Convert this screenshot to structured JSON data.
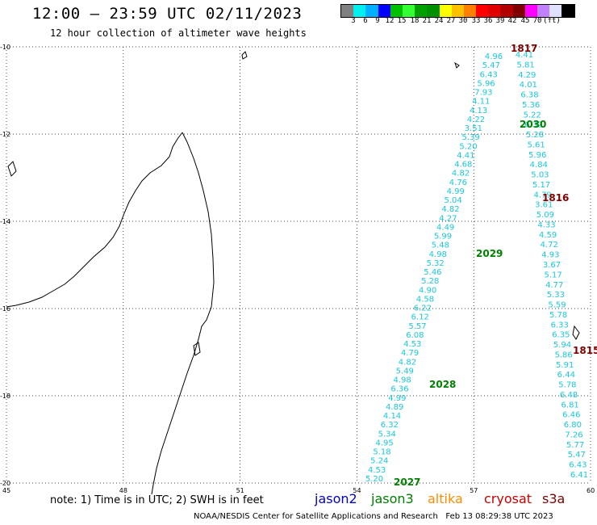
{
  "header": {
    "title": "12:00 – 23:59 UTC 02/11/2023",
    "subtitle": "12 hour collection of altimeter wave heights"
  },
  "colorbar": {
    "colors": [
      "#808080",
      "#00f0f0",
      "#00b0ff",
      "#0000ff",
      "#00c000",
      "#33ff33",
      "#00a000",
      "#009000",
      "#ffff00",
      "#ffc000",
      "#ff8000",
      "#ff0000",
      "#e00000",
      "#b00000",
      "#800000",
      "#ff00ff",
      "#c080ff",
      "#e0e0ff",
      "#000000"
    ],
    "labels": [
      "3",
      "6",
      "9",
      "12",
      "15",
      "18",
      "21",
      "24",
      "27",
      "30",
      "33",
      "36",
      "39",
      "42",
      "45",
      "70",
      "(ft)"
    ]
  },
  "axes": {
    "lat_labels": [
      "-10",
      "-12",
      "-14",
      "-16",
      "-18",
      "-20"
    ],
    "lon_labels": [
      "45",
      "48",
      "51",
      "54",
      "57",
      "60"
    ],
    "lat_range": [
      -20,
      -10
    ],
    "lon_range": [
      45,
      60
    ]
  },
  "tracks": [
    {
      "id": "1817",
      "color": "#800000",
      "lat_top": -10.0,
      "lon_top": 58.1,
      "lat_bot": -10.0,
      "lon_bot": 58.1
    },
    {
      "id": "2030",
      "color": "#008000"
    },
    {
      "id": "1816",
      "color": "#800000"
    },
    {
      "id": "2029",
      "color": "#008000"
    },
    {
      "id": "1815",
      "color": "#800000"
    },
    {
      "id": "2028",
      "color": "#008000"
    },
    {
      "id": "2027",
      "color": "#008000"
    }
  ],
  "track_A_values": [
    "4.96",
    "5.47",
    "6.43",
    "5.96",
    "7.93",
    "4.11",
    "4.13",
    "4.22",
    "3.51",
    "5.39",
    "5.20",
    "4.41",
    "4.68",
    "4.82",
    "4.76",
    "4.99",
    "5.04",
    "4.82",
    "4.27",
    "4.49",
    "5.99",
    "5.48",
    "4.98",
    "5.32",
    "5.46",
    "5.28",
    "4.90",
    "4.58",
    "6.22",
    "6.12",
    "5.57",
    "6.08",
    "4.53",
    "4.79",
    "4.82",
    "5.49",
    "4.98",
    "6.36",
    "4.99",
    "4.89",
    "4.14",
    "6.32",
    "5.34",
    "4.95",
    "5.18",
    "5.24",
    "4.53",
    "5.20"
  ],
  "track_B_values": [
    "4.41",
    "5.81",
    "4.29",
    "4.01",
    "6.38",
    "5.36",
    "5.22",
    "6.32",
    "5.28",
    "5.61",
    "5.96",
    "4.84",
    "5.03",
    "5.17",
    "4.79",
    "3.61",
    "5.09",
    "4.33",
    "4.59",
    "4.72",
    "4.93",
    "3.67",
    "5.17",
    "4.77",
    "5.33",
    "5.59",
    "5.78",
    "6.33",
    "6.35",
    "5.94",
    "5.86",
    "5.91",
    "6.44",
    "5.78",
    "6.48",
    "6.81",
    "6.46",
    "6.80",
    "7.26",
    "5.77",
    "5.47",
    "6.43",
    "6.41"
  ],
  "track_labels": [
    {
      "text": "1817",
      "color": "#800000"
    },
    {
      "text": "2030",
      "color": "#008000"
    },
    {
      "text": "1816",
      "color": "#800000"
    },
    {
      "text": "2029",
      "color": "#008000"
    },
    {
      "text": "1815",
      "color": "#800000"
    },
    {
      "text": "2028",
      "color": "#008000"
    },
    {
      "text": "2027",
      "color": "#008000"
    }
  ],
  "note": "note: 1) Time is in UTC; 2) SWH is in feet",
  "legend": [
    {
      "name": "jason2",
      "color": "#0000cc"
    },
    {
      "name": "jason3",
      "color": "#008000"
    },
    {
      "name": "altika",
      "color": "#ff8c00"
    },
    {
      "name": "cryosat",
      "color": "#cc0000"
    },
    {
      "name": "s3a",
      "color": "#800000"
    }
  ],
  "footer": "NOAA/NESDIS Center for Satellite Applications and Research   Feb 13 08:29:38 UTC 2023"
}
